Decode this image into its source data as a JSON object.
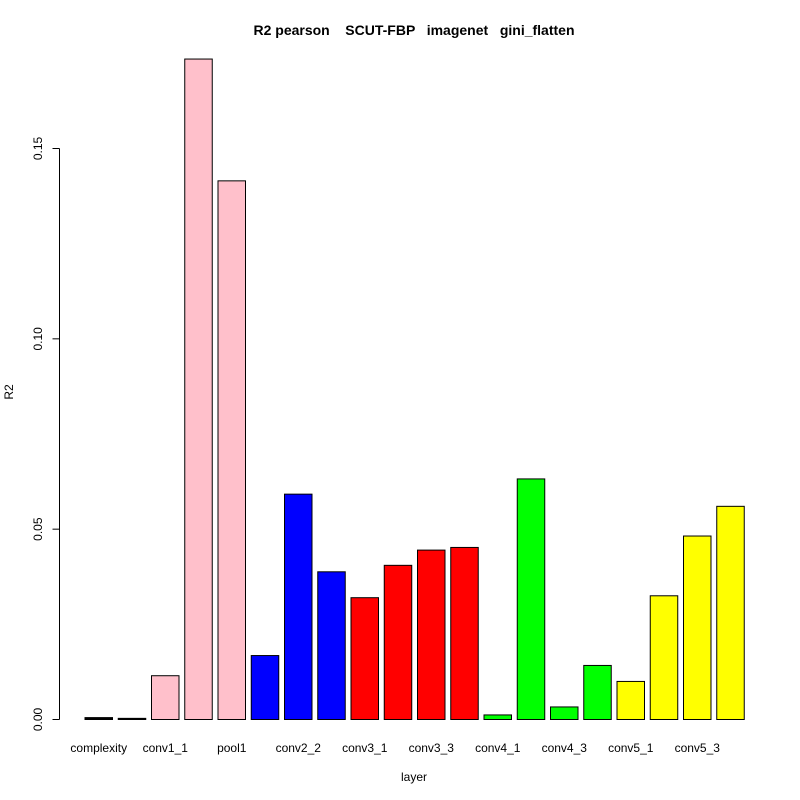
{
  "chart_data": {
    "type": "bar",
    "title": "R2 pearson    SCUT-FBP   imagenet   gini_flatten",
    "xlabel": "layer",
    "ylabel": "R2",
    "ylim": [
      0,
      0.175
    ],
    "yticks": [
      0.0,
      0.05,
      0.1,
      0.15
    ],
    "ytick_labels": [
      "0.00",
      "0.05",
      "0.10",
      "0.15"
    ],
    "grid": false,
    "legend": "none",
    "categories": [
      "complexity",
      "",
      "conv1_1",
      "",
      "pool1",
      "",
      "conv2_2",
      "",
      "conv3_1",
      "",
      "conv3_3",
      "",
      "conv4_1",
      "",
      "conv4_3",
      "",
      "conv5_1",
      "",
      "conv5_3",
      ""
    ],
    "values": [
      0.0005,
      0.0003,
      0.0115,
      0.1735,
      0.1415,
      0.0168,
      0.0592,
      0.0388,
      0.032,
      0.0405,
      0.0445,
      0.0452,
      0.0012,
      0.0632,
      0.0033,
      0.0142,
      0.01,
      0.0325,
      0.0482,
      0.056
    ],
    "colors": [
      "#000000",
      "#000000",
      "#FFC0CB",
      "#FFC0CB",
      "#FFC0CB",
      "#0000FF",
      "#0000FF",
      "#0000FF",
      "#FF0000",
      "#FF0000",
      "#FF0000",
      "#FF0000",
      "#00FF00",
      "#00FF00",
      "#00FF00",
      "#00FF00",
      "#FFFF00",
      "#FFFF00",
      "#FFFF00",
      "#FFFF00"
    ]
  }
}
